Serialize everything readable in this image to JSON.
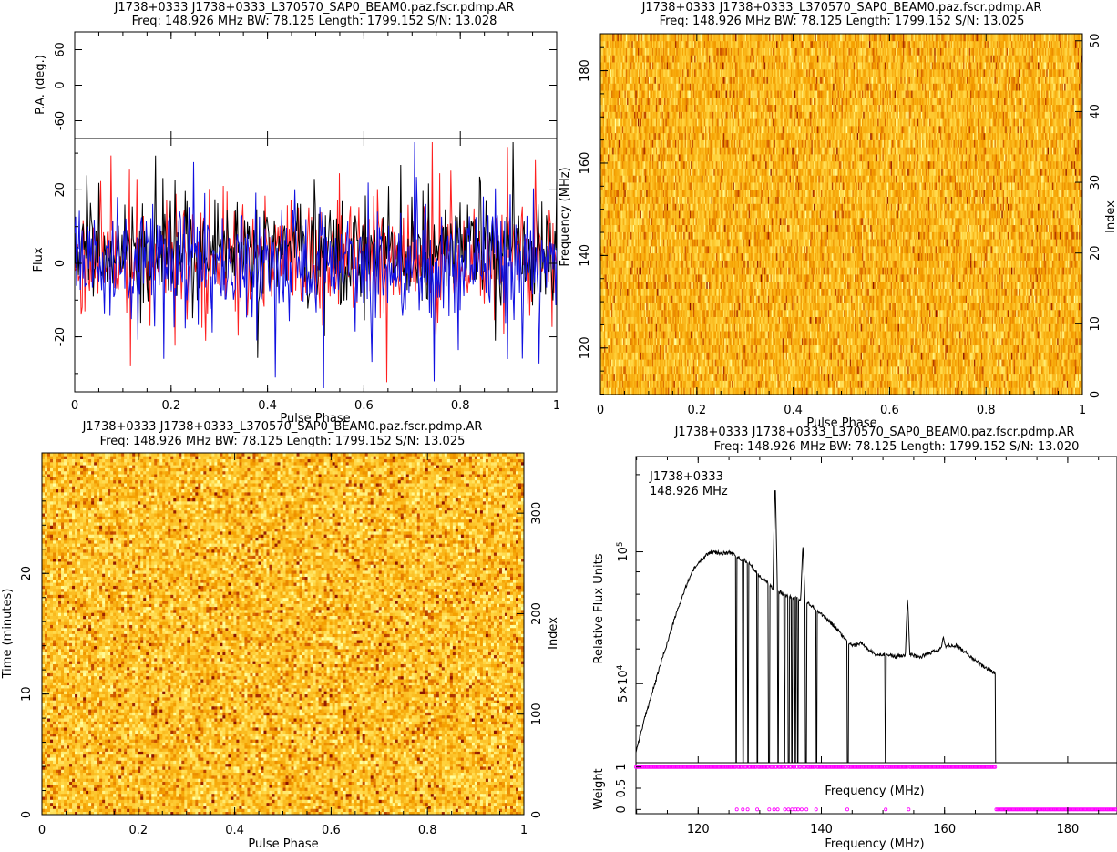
{
  "chart_data": [
    {
      "type": "line",
      "panel": "profile-with-position-angle",
      "title_line1": "J1738+0333 J1738+0333_L370570_SAP0_BEAM0.paz.fscr.pdmp.AR",
      "title_line2": "Freq: 148.926 MHz BW: 78.125 Length: 1799.152 S/N: 13.028",
      "pa_axis": {
        "label": "P.A. (deg.)",
        "ylim": [
          -90,
          90
        ],
        "ticks": [
          -60,
          0,
          60
        ],
        "tick_labels": [
          "-60",
          "0",
          "60"
        ]
      },
      "flux_axis": {
        "label": "Flux",
        "ylim": [
          -35,
          34
        ],
        "ticks": [
          -20,
          0,
          20
        ],
        "tick_labels": [
          "-20",
          "0",
          "20"
        ]
      },
      "xaxis": {
        "label": "Pulse Phase",
        "xlim": [
          0,
          1
        ],
        "ticks": [
          0,
          0.2,
          0.4,
          0.6,
          0.8,
          1
        ],
        "tick_labels": [
          "0",
          "0.2",
          "0.4",
          "0.6",
          "0.8",
          "1"
        ]
      },
      "series": [
        {
          "color": "#ff2020",
          "mean": 2,
          "amp": 14,
          "n": 520
        },
        {
          "color": "#000000",
          "mean": 3,
          "amp": 13,
          "n": 520
        },
        {
          "color": "#1010e0",
          "mean": 0,
          "amp": 14,
          "n": 520
        }
      ],
      "noise_note": "profile is noise-like with no visible pulse"
    },
    {
      "type": "heatmap",
      "panel": "frequency-vs-phase",
      "title_line1": "J1738+0333 J1738+0333_L370570_SAP0_BEAM0.paz.fscr.pdmp.AR",
      "title_line2": "Freq: 148.926 MHz BW: 78.125 Length: 1799.152 S/N: 13.025",
      "xaxis": {
        "label": "Pulse Phase",
        "xlim": [
          0,
          1
        ],
        "ticks": [
          0,
          0.2,
          0.4,
          0.6,
          0.8,
          1
        ],
        "tick_labels": [
          "0",
          "0.2",
          "0.4",
          "0.6",
          "0.8",
          "1"
        ]
      },
      "yaxis": {
        "label": "Frequency (MHz)",
        "ylim": [
          109.9,
          188.0
        ],
        "ticks": [
          120,
          140,
          160,
          180
        ],
        "tick_labels": [
          "120",
          "140",
          "160",
          "180"
        ]
      },
      "right_axis": {
        "label": "Index",
        "ylim": [
          0,
          51
        ],
        "ticks": [
          0,
          10,
          20,
          30,
          40,
          50
        ],
        "tick_labels": [
          "0",
          "10",
          "20",
          "30",
          "40",
          "50"
        ]
      },
      "n_channels": 51,
      "n_bins": 400,
      "colormap": [
        "#ffffa0",
        "#ffd23c",
        "#f5a000",
        "#d25a00",
        "#8c1400"
      ]
    },
    {
      "type": "heatmap",
      "panel": "time-vs-phase",
      "title_line1": "J1738+0333 J1738+0333_L370570_SAP0_BEAM0.paz.fscr.pdmp.AR",
      "title_line2": "Freq: 148.926 MHz BW: 78.125 Length: 1799.152 S/N: 13.025",
      "xaxis": {
        "label": "Pulse Phase",
        "xlim": [
          0,
          1
        ],
        "ticks": [
          0,
          0.2,
          0.4,
          0.6,
          0.8,
          1
        ],
        "tick_labels": [
          "0",
          "0.2",
          "0.4",
          "0.6",
          "0.8",
          "1"
        ]
      },
      "yaxis": {
        "label": "Time (minutes)",
        "ylim": [
          0,
          29.99
        ],
        "ticks": [
          0,
          10,
          20
        ],
        "tick_labels": [
          "0",
          "10",
          "20"
        ]
      },
      "right_axis": {
        "label": "Index",
        "ylim": [
          0,
          360
        ],
        "ticks": [
          0,
          100,
          200,
          300
        ],
        "tick_labels": [
          "0",
          "100",
          "200",
          "300"
        ]
      },
      "n_subints": 360,
      "n_bins": 530,
      "colormap": [
        "#ffffa0",
        "#ffd23c",
        "#f5a000",
        "#d25a00",
        "#8c1400"
      ]
    },
    {
      "type": "line",
      "panel": "bandpass",
      "title_line1": "J1738+0333 J1738+0333_L370570_SAP0_BEAM0.paz.fscr.pdmp.AR",
      "title_line2": "Freq: 148.926 MHz BW: 78.125 Length: 1799.152 S/N: 13.020",
      "annotation_line1": "J1738+0333",
      "annotation_line2": "148.926 MHz",
      "flux_axis": {
        "label": "Relative Flux Units",
        "scale": "log",
        "ylim": [
          33000,
          165000
        ],
        "tick_labels": [
          {
            "value": 100000,
            "base": "10",
            "exp": "5"
          },
          {
            "value": 50000,
            "base": "5×10",
            "exp": "4"
          }
        ]
      },
      "xaxis": {
        "label": "Frequency (MHz)",
        "xlim": [
          109.9,
          188.0
        ],
        "ticks": [
          120,
          140,
          160,
          180
        ],
        "tick_labels": [
          "120",
          "140",
          "160",
          "180"
        ]
      },
      "bandpass_points": [
        [
          109.9,
          35000
        ],
        [
          111,
          40000
        ],
        [
          113,
          50000
        ],
        [
          115,
          62000
        ],
        [
          117,
          76000
        ],
        [
          119,
          90000
        ],
        [
          120.5,
          96000
        ],
        [
          122,
          100000
        ],
        [
          124,
          99000
        ],
        [
          125,
          100000
        ],
        [
          126.5,
          97000
        ],
        [
          128,
          95000
        ],
        [
          130,
          88000
        ],
        [
          132,
          83000
        ],
        [
          134,
          80000
        ],
        [
          136,
          78000
        ],
        [
          138,
          76000
        ],
        [
          140,
          72000
        ],
        [
          142,
          68000
        ],
        [
          143.5,
          64000
        ],
        [
          145,
          61000
        ],
        [
          146.5,
          62000
        ],
        [
          147.5,
          60000
        ],
        [
          149,
          58000
        ],
        [
          150.5,
          58500
        ],
        [
          152,
          57500
        ],
        [
          154,
          58500
        ],
        [
          156,
          57500
        ],
        [
          158,
          59000
        ],
        [
          159.5,
          60000
        ],
        [
          160.5,
          61000
        ],
        [
          162,
          61000
        ],
        [
          164,
          58000
        ],
        [
          166,
          55000
        ],
        [
          168,
          53000
        ],
        [
          168.3,
          53000
        ]
      ],
      "spikes": [
        [
          132.5,
          145000
        ],
        [
          137.0,
          104000
        ],
        [
          154.0,
          79000
        ],
        [
          159.8,
          64000
        ]
      ],
      "dropouts": [
        126.2,
        127.3,
        128.1,
        129.6,
        131.5,
        132.3,
        133.0,
        134.0,
        134.7,
        135.2,
        135.8,
        136.2,
        136.8,
        137.5,
        139.2,
        144.3,
        150.4,
        154.1
      ],
      "band_end_mhz": 168.3,
      "weight_axis": {
        "label": "Weight",
        "ylim": [
          -0.1,
          1.1
        ],
        "ticks": [
          0,
          0.5,
          1
        ],
        "tick_labels": [
          "0",
          "0.5",
          "1"
        ]
      },
      "weight_xaxis_label": "Frequency (MHz)",
      "weight_marker_color": "#ff00ff"
    }
  ]
}
